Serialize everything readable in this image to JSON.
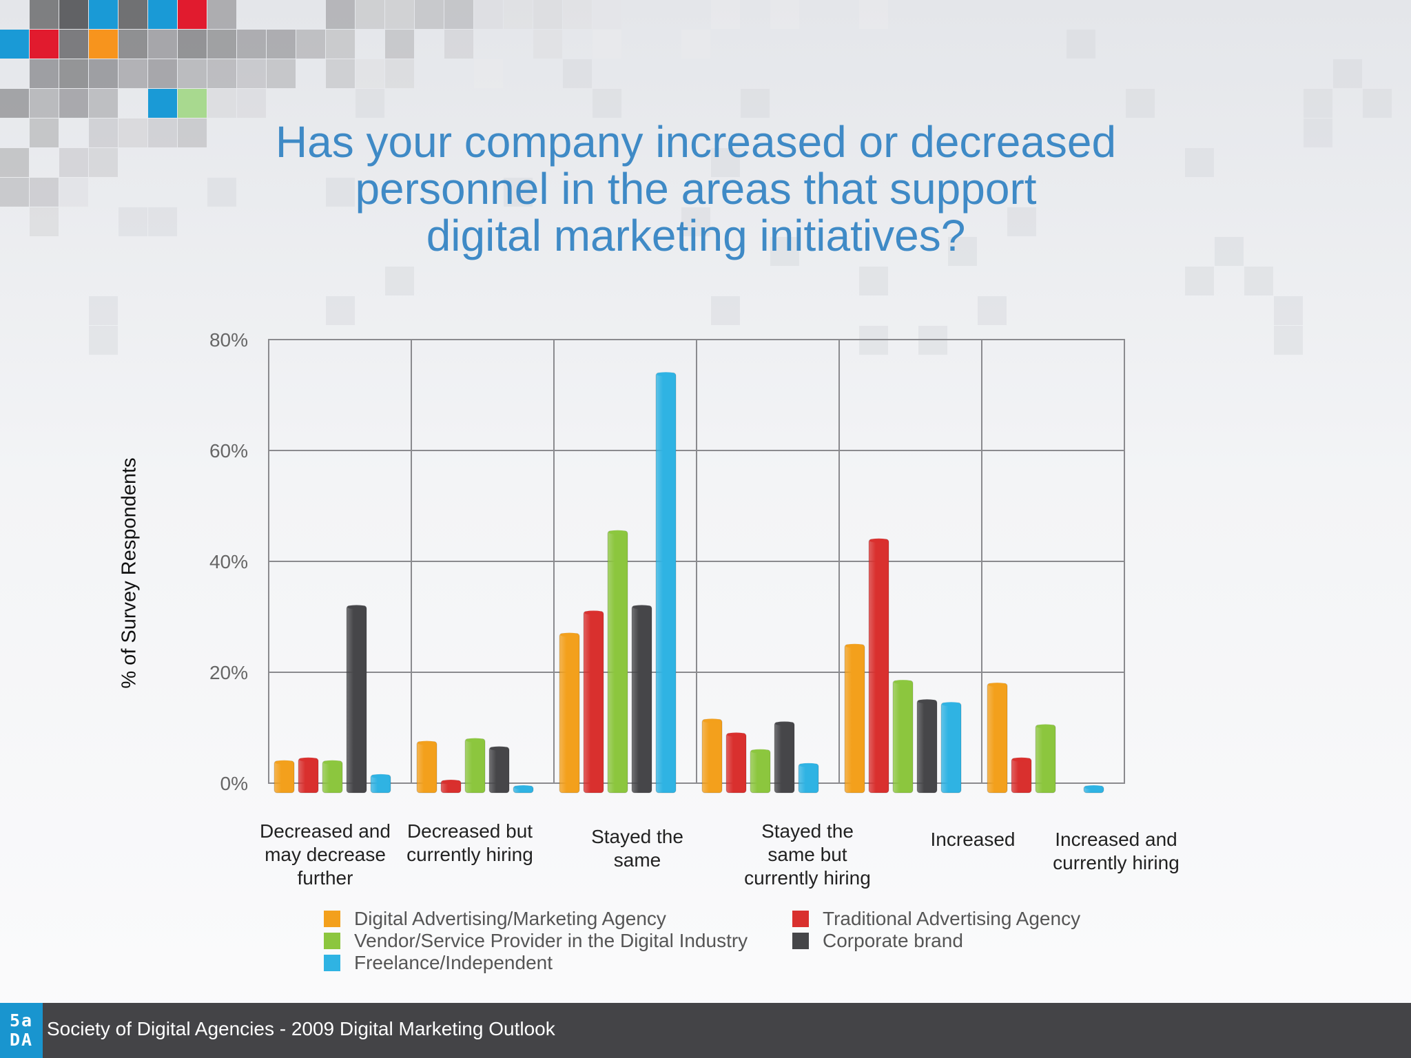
{
  "title_lines": [
    "Has your company increased or decreased",
    "personnel in the areas that support",
    "digital marketing initiatives?"
  ],
  "footer": {
    "text": "Society of Digital Agencies - 2009 Digital Marketing Outlook",
    "logo_top": "5a",
    "logo_bottom": "DA"
  },
  "colors": {
    "title": "#3f8ac6",
    "footer_bg": "#444447",
    "logo_bg": "#1995cf"
  },
  "chart_data": {
    "type": "bar",
    "title": "Has your company increased or decreased personnel in the areas that support digital marketing initiatives?",
    "ylabel": "% of Survey Respondents",
    "xlabel": "",
    "ylim": [
      0,
      80
    ],
    "yticks": [
      0,
      20,
      40,
      60,
      80
    ],
    "ytick_labels": [
      "0%",
      "20%",
      "40%",
      "60%",
      "80%"
    ],
    "grid": true,
    "legend_position": "bottom",
    "categories": [
      [
        "Decreased and",
        "may decrease",
        "further"
      ],
      [
        "Decreased but",
        "currently hiring"
      ],
      [
        "Stayed the",
        "same"
      ],
      [
        "Stayed the",
        "same but",
        "currently hiring"
      ],
      [
        "Increased"
      ],
      [
        "Increased and",
        "currently hiring"
      ]
    ],
    "series": [
      {
        "name": "Digital Advertising/Marketing Agency",
        "color": "#f3a01c",
        "values": [
          4,
          7.5,
          27,
          11.5,
          25,
          18
        ]
      },
      {
        "name": "Traditional Advertising Agency",
        "color": "#d9302e",
        "values": [
          4.5,
          0.5,
          31,
          9,
          44,
          4.5
        ]
      },
      {
        "name": "Vendor/Service Provider in the Digital Industry",
        "color": "#8cc63e",
        "values": [
          4,
          8,
          45.5,
          6,
          18.5,
          10.5
        ]
      },
      {
        "name": "Corporate brand",
        "color": "#464649",
        "values": [
          32,
          6.5,
          32,
          11,
          15,
          0
        ]
      },
      {
        "name": "Freelance/Independent",
        "color": "#2fb3e3",
        "values": [
          1.5,
          -0.5,
          74,
          3.5,
          14.5,
          -0.5
        ]
      }
    ]
  }
}
